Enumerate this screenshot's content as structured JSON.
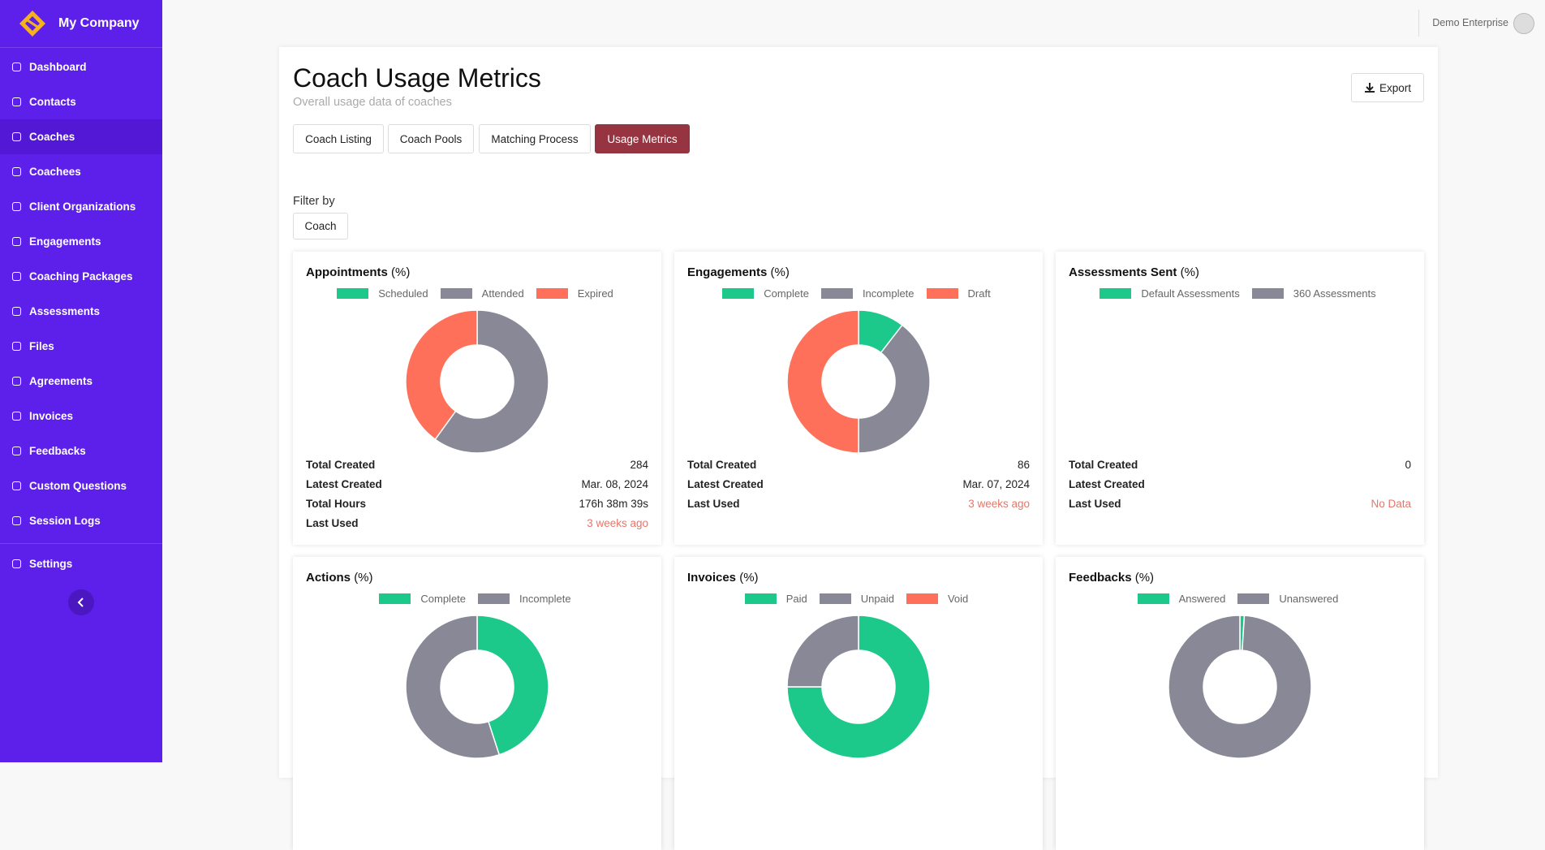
{
  "brand": "My Company",
  "nav": [
    "Dashboard",
    "Contacts",
    "Coaches",
    "Coachees",
    "Client Organizations",
    "Engagements",
    "Coaching Packages",
    "Assessments",
    "Files",
    "Agreements",
    "Invoices",
    "Feedbacks",
    "Custom Questions",
    "Session Logs",
    "Settings"
  ],
  "nav_active": 2,
  "user": "Demo Enterprise",
  "page": {
    "title": "Coach Usage Metrics",
    "subtitle": "Overall usage data of coaches",
    "export": "Export",
    "tabs": [
      "Coach Listing",
      "Coach Pools",
      "Matching Process",
      "Usage Metrics"
    ],
    "tab_active": 3,
    "filter_label": "Filter by",
    "filter_button": "Coach"
  },
  "chart_data": [
    {
      "type": "pie",
      "title": "Appointments",
      "unit": "(%)",
      "categories": [
        "Scheduled",
        "Attended",
        "Expired"
      ],
      "values": [
        0,
        60,
        40
      ],
      "colors": [
        "#1dc98a",
        "#888896",
        "#ff705a"
      ]
    },
    {
      "type": "pie",
      "title": "Engagements",
      "unit": "(%)",
      "categories": [
        "Complete",
        "Incomplete",
        "Draft"
      ],
      "values": [
        10.5,
        39.5,
        50
      ],
      "colors": [
        "#1dc98a",
        "#888896",
        "#ff705a"
      ]
    },
    {
      "type": "pie",
      "title": "Assessments Sent",
      "unit": "(%)",
      "categories": [
        "Default Assessments",
        "360 Assessments"
      ],
      "values": [
        0,
        0
      ],
      "colors": [
        "#1dc98a",
        "#888896"
      ]
    },
    {
      "type": "pie",
      "title": "Actions",
      "unit": "(%)",
      "categories": [
        "Complete",
        "Incomplete"
      ],
      "values": [
        45,
        55
      ],
      "colors": [
        "#1dc98a",
        "#888896"
      ]
    },
    {
      "type": "pie",
      "title": "Invoices",
      "unit": "(%)",
      "categories": [
        "Paid",
        "Unpaid",
        "Void"
      ],
      "values": [
        75,
        25,
        0
      ],
      "colors": [
        "#1dc98a",
        "#888896",
        "#ff705a"
      ]
    },
    {
      "type": "pie",
      "title": "Feedbacks",
      "unit": "(%)",
      "categories": [
        "Answered",
        "Unanswered"
      ],
      "values": [
        1,
        99
      ],
      "colors": [
        "#1dc98a",
        "#888896"
      ]
    }
  ],
  "panels": [
    {
      "stats": [
        {
          "label": "Total Created",
          "value": "284"
        },
        {
          "label": "Latest Created",
          "value": "Mar. 08, 2024"
        },
        {
          "label": "Total Hours",
          "value": "176h 38m 39s"
        },
        {
          "label": "Last Used",
          "value": "3 weeks ago",
          "color": "#e5766b"
        }
      ]
    },
    {
      "stats": [
        {
          "label": "Total Created",
          "value": "86"
        },
        {
          "label": "Latest Created",
          "value": "Mar. 07, 2024"
        },
        {
          "label": "Last Used",
          "value": "3 weeks ago",
          "color": "#e5766b"
        }
      ]
    },
    {
      "stats": [
        {
          "label": "Total Created",
          "value": "0"
        },
        {
          "label": "Latest Created"
        },
        {
          "label": "Last Used",
          "value": "No Data",
          "color": "#e5766b"
        }
      ]
    },
    {
      "stats": []
    },
    {
      "stats": []
    },
    {
      "stats": []
    }
  ]
}
